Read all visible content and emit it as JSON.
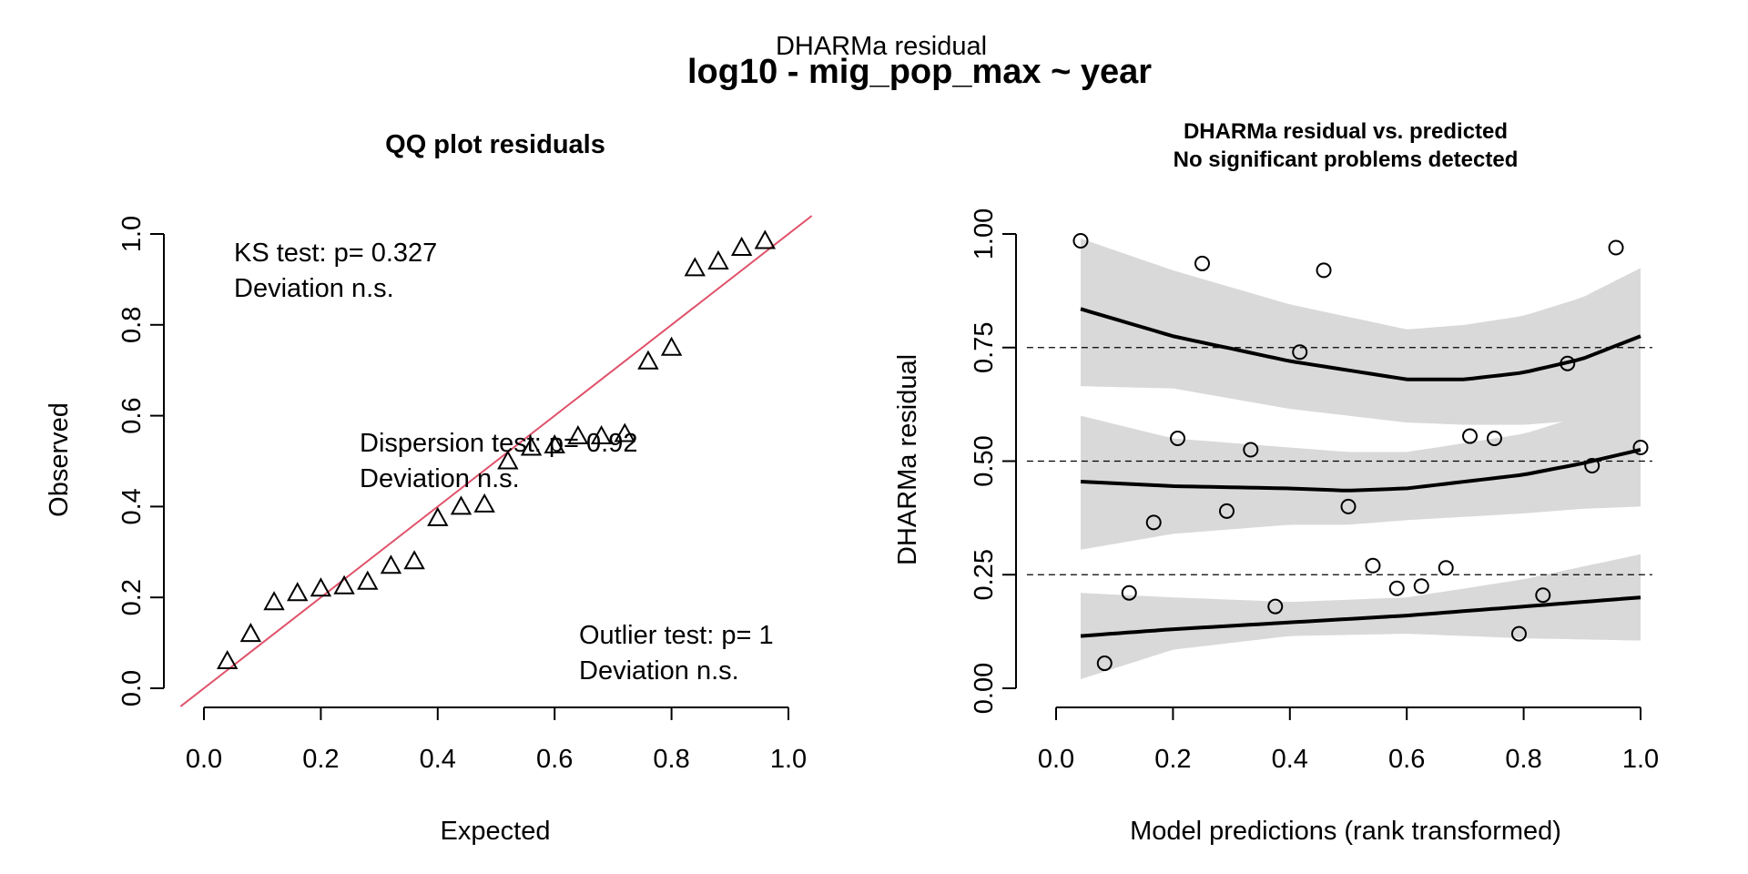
{
  "figure": {
    "suptitle": "DHARMa residual",
    "title": "log10 - mig_pop_max ~ year"
  },
  "colors": {
    "qq_line": "#df536b",
    "marks": "#000000",
    "band": "#d9d9d9"
  },
  "chart_data": [
    {
      "type": "scatter",
      "title": "QQ plot residuals",
      "xlabel": "Expected",
      "ylabel": "Observed",
      "xlim": [
        0,
        1
      ],
      "ylim": [
        0,
        1
      ],
      "x_ticks": [
        "0.0",
        "0.2",
        "0.4",
        "0.6",
        "0.8",
        "1.0"
      ],
      "y_ticks": [
        "0.0",
        "0.2",
        "0.4",
        "0.6",
        "0.8",
        "1.0"
      ],
      "marker": "open-triangle",
      "reference_line": "y = x",
      "points": {
        "x": [
          0.04,
          0.08,
          0.12,
          0.16,
          0.2,
          0.24,
          0.28,
          0.32,
          0.36,
          0.4,
          0.44,
          0.48,
          0.52,
          0.56,
          0.6,
          0.64,
          0.68,
          0.72,
          0.76,
          0.8,
          0.84,
          0.88,
          0.92,
          0.96
        ],
        "y": [
          0.06,
          0.12,
          0.19,
          0.21,
          0.22,
          0.225,
          0.235,
          0.27,
          0.28,
          0.375,
          0.4,
          0.405,
          0.5,
          0.53,
          0.535,
          0.555,
          0.555,
          0.56,
          0.72,
          0.75,
          0.925,
          0.94,
          0.97,
          0.985
        ]
      },
      "annotations": {
        "ks_test": "KS test: p= 0.327",
        "ks_deviation": "Deviation  n.s.",
        "dispersion_test": "Dispersion test: p= 0.92",
        "dispersion_deviation": "Deviation  n.s.",
        "outlier_test": "Outlier test: p= 1",
        "outlier_deviation": "Deviation  n.s."
      }
    },
    {
      "type": "scatter",
      "title": "DHARMa residual vs. predicted",
      "subtitle": "No significant problems detected",
      "xlabel": "Model predictions (rank transformed)",
      "ylabel": "DHARMa residual",
      "xlim": [
        0,
        1
      ],
      "ylim": [
        0,
        1
      ],
      "x_ticks": [
        "0.0",
        "0.2",
        "0.4",
        "0.6",
        "0.8",
        "1.0"
      ],
      "y_ticks": [
        "0.00",
        "0.25",
        "0.50",
        "0.75",
        "1.00"
      ],
      "marker": "open-circle",
      "reference_lines_y": [
        0.25,
        0.5,
        0.75
      ],
      "points": {
        "x": [
          0.042,
          0.083,
          0.125,
          0.167,
          0.208,
          0.25,
          0.292,
          0.333,
          0.375,
          0.417,
          0.458,
          0.5,
          0.542,
          0.583,
          0.625,
          0.667,
          0.708,
          0.75,
          0.792,
          0.833,
          0.875,
          0.917,
          0.958,
          1.0
        ],
        "y": [
          0.985,
          0.055,
          0.21,
          0.365,
          0.55,
          0.935,
          0.39,
          0.525,
          0.18,
          0.74,
          0.92,
          0.4,
          0.27,
          0.22,
          0.225,
          0.265,
          0.555,
          0.55,
          0.12,
          0.205,
          0.715,
          0.49,
          0.97,
          0.53
        ]
      },
      "quantile_curves": [
        {
          "quantile": 0.25,
          "x": [
            0.042,
            0.2,
            0.4,
            0.6,
            0.8,
            1.0
          ],
          "y": [
            0.115,
            0.13,
            0.145,
            0.16,
            0.18,
            0.2
          ],
          "lower": [
            0.02,
            0.085,
            0.115,
            0.12,
            0.11,
            0.105
          ],
          "upper": [
            0.21,
            0.2,
            0.19,
            0.2,
            0.24,
            0.295
          ]
        },
        {
          "quantile": 0.5,
          "x": [
            0.042,
            0.2,
            0.4,
            0.5,
            0.6,
            0.8,
            0.9,
            1.0
          ],
          "y": [
            0.455,
            0.445,
            0.44,
            0.435,
            0.44,
            0.47,
            0.495,
            0.525
          ],
          "lower": [
            0.305,
            0.34,
            0.36,
            0.36,
            0.37,
            0.385,
            0.395,
            0.4
          ],
          "upper": [
            0.6,
            0.55,
            0.53,
            0.52,
            0.52,
            0.56,
            0.6,
            0.645
          ]
        },
        {
          "quantile": 0.75,
          "x": [
            0.042,
            0.2,
            0.4,
            0.6,
            0.7,
            0.8,
            0.9,
            1.0
          ],
          "y": [
            0.835,
            0.775,
            0.72,
            0.68,
            0.68,
            0.695,
            0.725,
            0.775
          ],
          "lower": [
            0.665,
            0.66,
            0.615,
            0.585,
            0.58,
            0.58,
            0.59,
            0.61
          ],
          "upper": [
            0.99,
            0.92,
            0.845,
            0.79,
            0.8,
            0.82,
            0.86,
            0.925
          ]
        }
      ]
    }
  ]
}
